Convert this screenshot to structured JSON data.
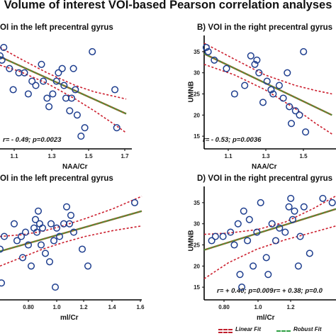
{
  "title": "Volume of interest VOI-based Pearson correlation analyses",
  "legend": {
    "linear": "Linear Fit",
    "robust": "Robust Fit"
  },
  "colors": {
    "points": "#1f3f8f",
    "linear_fit": "#8b6a2b",
    "ci": "#cc1f2e",
    "robust_fit": "#2ea043"
  },
  "chart_data": [
    {
      "type": "scatter",
      "title": "OI in the left precentral gyrus",
      "xlabel": "NAA/Cr",
      "ylabel": "",
      "xlim": [
        1.05,
        1.75
      ],
      "ylim": [
        12,
        38
      ],
      "xticks": [
        "1.1",
        "1.3",
        "1.5",
        "1.7"
      ],
      "yticks": [],
      "stat": "r= - 0.49; p=0.0023",
      "points": [
        [
          1.05,
          34
        ],
        [
          1.07,
          36
        ],
        [
          1.06,
          33
        ],
        [
          1.1,
          31
        ],
        [
          1.12,
          26
        ],
        [
          1.15,
          30
        ],
        [
          1.18,
          30
        ],
        [
          1.2,
          25
        ],
        [
          1.22,
          28
        ],
        [
          1.24,
          27
        ],
        [
          1.27,
          32
        ],
        [
          1.28,
          28
        ],
        [
          1.3,
          24
        ],
        [
          1.31,
          22
        ],
        [
          1.33,
          25
        ],
        [
          1.35,
          28
        ],
        [
          1.36,
          30
        ],
        [
          1.38,
          31
        ],
        [
          1.39,
          27
        ],
        [
          1.4,
          24
        ],
        [
          1.42,
          21
        ],
        [
          1.43,
          24
        ],
        [
          1.44,
          31
        ],
        [
          1.45,
          26
        ],
        [
          1.46,
          20
        ],
        [
          1.48,
          15
        ],
        [
          1.5,
          17
        ],
        [
          1.54,
          35
        ],
        [
          1.66,
          26
        ],
        [
          1.67,
          17
        ]
      ],
      "fit": {
        "x": [
          1.05,
          1.72
        ],
        "y": [
          33.8,
          20.3
        ]
      },
      "ci_upper": {
        "x": [
          1.05,
          1.15,
          1.3,
          1.45,
          1.55,
          1.65,
          1.72
        ],
        "y": [
          36.0,
          33.5,
          30.0,
          27.0,
          25.5,
          24.5,
          23.8
        ]
      },
      "ci_lower": {
        "x": [
          1.05,
          1.15,
          1.3,
          1.45,
          1.55,
          1.65,
          1.72
        ],
        "y": [
          31.8,
          30.4,
          27.5,
          23.8,
          21.0,
          18.0,
          15.8
        ]
      }
    },
    {
      "type": "scatter",
      "title": "B) VOI in the right precentral gyrus",
      "xlabel": "NAA/Cr",
      "ylabel": "UMNB",
      "xlim": [
        1.05,
        1.7
      ],
      "ylim": [
        12,
        38
      ],
      "xticks": [
        "1.1",
        "1.3",
        "1.5"
      ],
      "yticks": [
        "15",
        "20",
        "25",
        "30",
        "35"
      ],
      "stat": "r= - 0.53; p=0.0036",
      "points": [
        [
          1.06,
          36
        ],
        [
          1.07,
          35
        ],
        [
          1.1,
          33
        ],
        [
          1.16,
          31
        ],
        [
          1.2,
          25
        ],
        [
          1.25,
          27
        ],
        [
          1.28,
          34
        ],
        [
          1.3,
          32
        ],
        [
          1.31,
          33
        ],
        [
          1.32,
          30
        ],
        [
          1.34,
          23
        ],
        [
          1.36,
          28
        ],
        [
          1.38,
          26
        ],
        [
          1.39,
          25
        ],
        [
          1.42,
          27
        ],
        [
          1.44,
          24
        ],
        [
          1.46,
          30
        ],
        [
          1.47,
          22
        ],
        [
          1.48,
          18
        ],
        [
          1.5,
          21
        ],
        [
          1.52,
          20
        ],
        [
          1.54,
          35
        ],
        [
          1.55,
          16
        ]
      ],
      "fit": {
        "x": [
          1.05,
          1.68
        ],
        "y": [
          34.5,
          20.0
        ]
      },
      "ci_upper": {
        "x": [
          1.05,
          1.2,
          1.35,
          1.5,
          1.6,
          1.68
        ],
        "y": [
          37.0,
          33.2,
          29.5,
          27.0,
          25.8,
          25.0
        ]
      },
      "ci_lower": {
        "x": [
          1.05,
          1.2,
          1.35,
          1.5,
          1.6,
          1.68
        ],
        "y": [
          32.0,
          29.5,
          26.0,
          21.5,
          18.0,
          15.5
        ]
      }
    },
    {
      "type": "scatter",
      "title": "OI in the left precentral gyrus",
      "xlabel": "ml/Cr",
      "ylabel": "",
      "xlim": [
        0.6,
        1.6
      ],
      "ylim": [
        12,
        38
      ],
      "xticks": [
        "0.80",
        "1.0",
        "1.2",
        "1.4",
        "1.6"
      ],
      "yticks": [],
      "stat": "r= + 0.40; p=0.009",
      "points": [
        [
          0.6,
          24
        ],
        [
          0.61,
          16
        ],
        [
          0.63,
          27
        ],
        [
          0.7,
          30
        ],
        [
          0.72,
          26
        ],
        [
          0.75,
          27
        ],
        [
          0.76,
          22
        ],
        [
          0.78,
          28
        ],
        [
          0.8,
          25
        ],
        [
          0.82,
          20
        ],
        [
          0.84,
          29
        ],
        [
          0.85,
          31
        ],
        [
          0.86,
          28
        ],
        [
          0.87,
          33
        ],
        [
          0.88,
          30
        ],
        [
          0.89,
          25
        ],
        [
          0.9,
          29
        ],
        [
          0.92,
          23
        ],
        [
          0.95,
          21
        ],
        [
          0.96,
          30
        ],
        [
          0.98,
          26
        ],
        [
          0.99,
          15
        ],
        [
          1.0,
          29
        ],
        [
          1.02,
          27
        ],
        [
          1.05,
          30
        ],
        [
          1.07,
          34
        ],
        [
          1.09,
          30
        ],
        [
          1.1,
          32
        ],
        [
          1.12,
          28
        ],
        [
          1.18,
          24
        ],
        [
          1.22,
          20
        ],
        [
          1.55,
          35
        ]
      ],
      "fit": {
        "x": [
          0.6,
          1.6
        ],
        "y": [
          23.5,
          33.0
        ]
      },
      "ci_upper": {
        "x": [
          0.6,
          0.75,
          0.9,
          1.05,
          1.2,
          1.4,
          1.6
        ],
        "y": [
          27.0,
          27.4,
          28.2,
          29.6,
          31.2,
          33.6,
          36.5
        ]
      },
      "ci_lower": {
        "x": [
          0.6,
          0.75,
          0.9,
          1.05,
          1.2,
          1.4,
          1.6
        ],
        "y": [
          20.0,
          22.0,
          24.0,
          25.6,
          27.0,
          28.4,
          29.5
        ]
      }
    },
    {
      "type": "scatter",
      "title": "D) VOI in the right precentral gyrus",
      "xlabel": "ml/Cr",
      "ylabel": "UMNB",
      "xlim": [
        0.62,
        1.32
      ],
      "ylim": [
        12,
        38
      ],
      "xticks": [
        "0.80",
        "1.0",
        "1.2"
      ],
      "yticks": [
        "15",
        "20",
        "25",
        "30",
        "35"
      ],
      "stat": "r= + 0.38; p=0.0",
      "points": [
        [
          0.66,
          26
        ],
        [
          0.68,
          27
        ],
        [
          0.72,
          27
        ],
        [
          0.76,
          28
        ],
        [
          0.78,
          25
        ],
        [
          0.8,
          30
        ],
        [
          0.81,
          18
        ],
        [
          0.82,
          15
        ],
        [
          0.83,
          33
        ],
        [
          0.85,
          26
        ],
        [
          0.86,
          31
        ],
        [
          0.88,
          20
        ],
        [
          0.9,
          28
        ],
        [
          0.92,
          35
        ],
        [
          0.95,
          22
        ],
        [
          0.96,
          18
        ],
        [
          0.98,
          30
        ],
        [
          1.0,
          26
        ],
        [
          1.02,
          29
        ],
        [
          1.05,
          28
        ],
        [
          1.07,
          34
        ],
        [
          1.08,
          36
        ],
        [
          1.09,
          31
        ],
        [
          1.1,
          33
        ],
        [
          1.12,
          20
        ],
        [
          1.13,
          27
        ],
        [
          1.15,
          34
        ],
        [
          1.18,
          23
        ],
        [
          1.25,
          36
        ],
        [
          1.3,
          35
        ]
      ],
      "fit": {
        "x": [
          0.62,
          1.32
        ],
        "y": [
          23.8,
          33.5
        ]
      },
      "ci_upper": {
        "x": [
          0.62,
          0.75,
          0.9,
          1.05,
          1.2,
          1.32
        ],
        "y": [
          27.5,
          27.8,
          28.6,
          30.4,
          33.6,
          36.6
        ]
      },
      "ci_lower": {
        "x": [
          0.62,
          0.75,
          0.9,
          1.05,
          1.2,
          1.32
        ],
        "y": [
          17.0,
          20.8,
          24.0,
          26.2,
          28.0,
          29.5
        ]
      }
    }
  ]
}
